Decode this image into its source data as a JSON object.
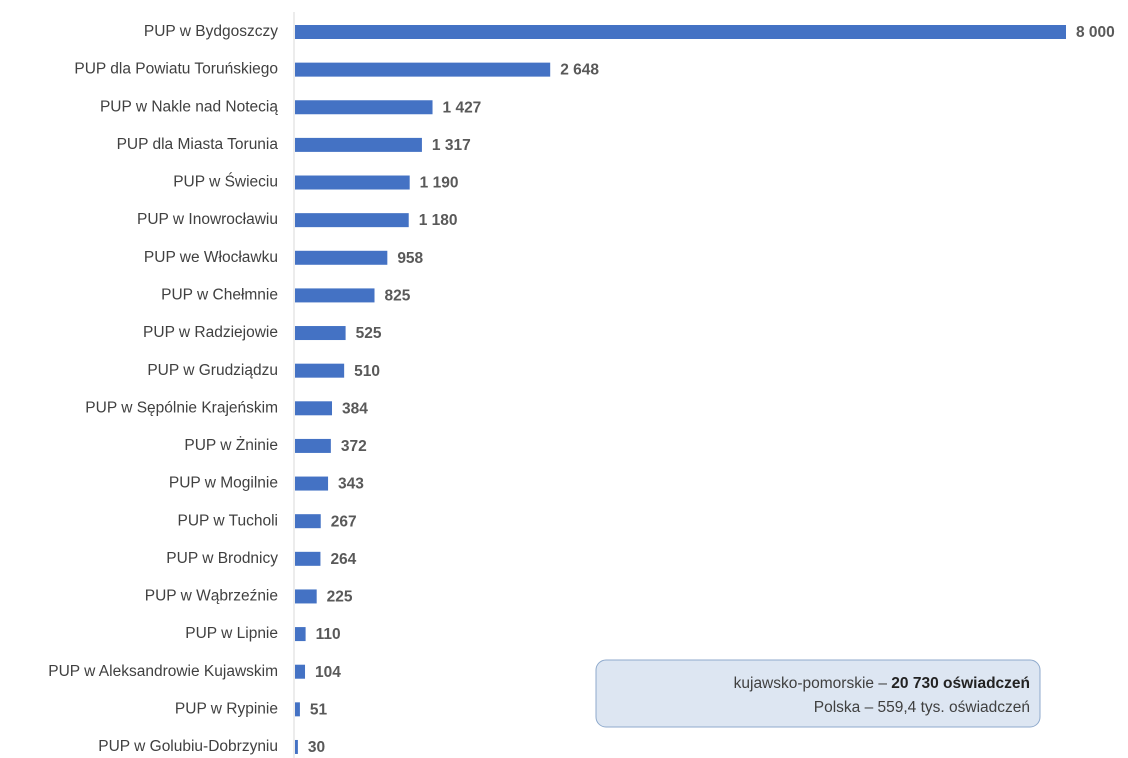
{
  "chart_data": {
    "type": "bar",
    "orientation": "horizontal",
    "color": "#4472c4",
    "categories": [
      "PUP w Bydgoszczy",
      "PUP dla Powiatu Toruńskiego",
      "PUP w Nakle nad Notecią",
      "PUP dla Miasta Torunia",
      "PUP w Świeciu",
      "PUP w Inowrocławiu",
      "PUP we Włocławku",
      "PUP w Chełmnie",
      "PUP w Radziejowie",
      "PUP w Grudziądzu",
      "PUP w Sępólnie Krajeńskim",
      "PUP w Żninie",
      "PUP w Mogilnie",
      "PUP w Tucholi",
      "PUP w Brodnicy",
      "PUP w Wąbrzeźnie",
      "PUP w Lipnie",
      "PUP w Aleksandrowie Kujawskim",
      "PUP w Rypinie",
      "PUP w Golubiu-Dobrzyniu"
    ],
    "values": [
      8000,
      2648,
      1427,
      1317,
      1190,
      1180,
      958,
      825,
      525,
      510,
      384,
      372,
      343,
      267,
      264,
      225,
      110,
      104,
      51,
      30
    ],
    "value_labels": [
      "8 000",
      "2 648",
      "1 427",
      "1 317",
      "1 190",
      "1 180",
      "958",
      "825",
      "525",
      "510",
      "384",
      "372",
      "343",
      "267",
      "264",
      "225",
      "110",
      "104",
      "51",
      "30"
    ],
    "annotation": {
      "line1": "kujawsko-pomorskie – ",
      "line1_bold": "20 730 oświadczeń",
      "line2": "Polska – 559,4 tys. oświadczeń"
    }
  }
}
